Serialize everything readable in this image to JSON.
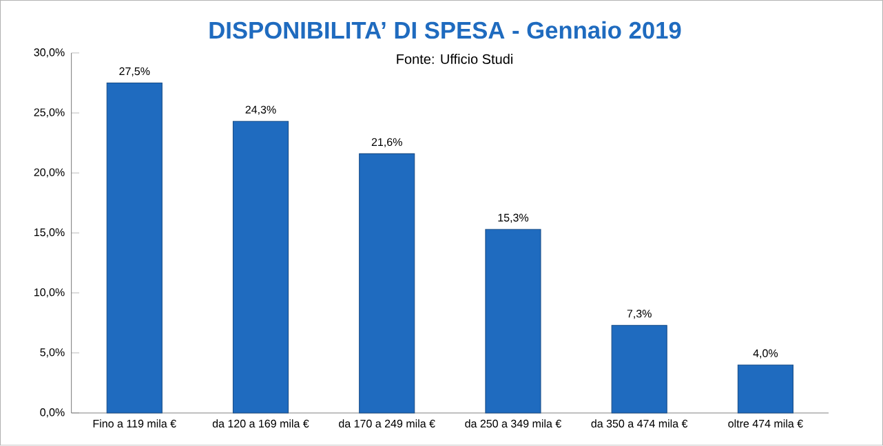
{
  "chart_data": {
    "type": "bar",
    "title": "DISPONIBILITA’ DI SPESA - Gennaio 2019",
    "annotations": [
      "Fonte: Ufficio Studi"
    ],
    "categories": [
      "Fino a 119 mila €",
      "da 120 a 169 mila €",
      "da 170 a 249 mila €",
      "da 250 a 349 mila €",
      "da 350 a 474 mila €",
      "oltre 474 mila €"
    ],
    "values": [
      27.5,
      24.3,
      21.6,
      15.3,
      7.3,
      4.0
    ],
    "value_labels": [
      "27,5%",
      "24,3%",
      "21,6%",
      "15,3%",
      "7,3%",
      "4,0%"
    ],
    "color": "#1f6bbf",
    "ylim": [
      0,
      30
    ],
    "yticks": [
      {
        "value": 0,
        "label": "0,0%"
      },
      {
        "value": 5,
        "label": "5,0%"
      },
      {
        "value": 10,
        "label": "10,0%"
      },
      {
        "value": 15,
        "label": "15,0%"
      },
      {
        "value": 20,
        "label": "20,0%"
      },
      {
        "value": 25,
        "label": "25,0%"
      },
      {
        "value": 30,
        "label": "30,0%"
      }
    ],
    "grid": false
  }
}
